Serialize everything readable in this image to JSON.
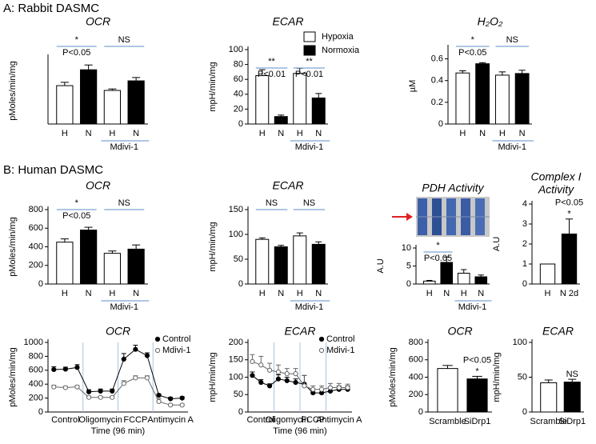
{
  "panels": [
    "A: Rabbit DASMC",
    "B: Human DASMC"
  ],
  "chart_data": [
    {
      "type": "bar",
      "title": "OCR",
      "ylabel": "pMoles/min/mg",
      "categories": [
        "H",
        "N",
        "H",
        "N"
      ],
      "values": [
        520,
        735,
        455,
        585
      ],
      "errors": [
        45,
        65,
        20,
        45
      ],
      "colors": [
        "#ffffff",
        "#000000",
        "#ffffff",
        "#000000"
      ],
      "ylim": [
        0,
        900
      ],
      "pair_labels": [
        [
          "*",
          "P<0.05"
        ],
        [
          "NS"
        ]
      ],
      "group_label": "Mdivi-1"
    },
    {
      "type": "bar",
      "title": "ECAR",
      "ylabel": "mpH/min/mg",
      "categories": [
        "H",
        "N",
        "H",
        "N"
      ],
      "values": [
        65,
        10,
        68,
        35
      ],
      "errors": [
        8,
        2,
        7,
        6
      ],
      "colors": [
        "#ffffff",
        "#000000",
        "#ffffff",
        "#000000"
      ],
      "ylim": [
        0,
        100
      ],
      "yticks": [
        0,
        20,
        40,
        60,
        80,
        100
      ],
      "pair_labels": [
        [
          "**",
          "P<0.01"
        ],
        [
          "**",
          "P<0.01"
        ]
      ],
      "group_label": "Mdivi-1",
      "legend": [
        {
          "name": "Hypoxia",
          "color": "#ffffff"
        },
        {
          "name": "Normoxia",
          "color": "#000000"
        }
      ]
    },
    {
      "type": "bar",
      "title": "H₂O₂",
      "ylabel": "µM",
      "categories": [
        "H",
        "N",
        "H",
        "N"
      ],
      "values": [
        0.47,
        0.555,
        0.45,
        0.465
      ],
      "errors": [
        0.02,
        0.01,
        0.03,
        0.03
      ],
      "colors": [
        "#ffffff",
        "#000000",
        "#ffffff",
        "#000000"
      ],
      "ylim": [
        0,
        0.7
      ],
      "yticks": [
        0,
        0.2,
        0.4,
        0.6
      ],
      "pair_labels": [
        [
          "*",
          "P<0.05"
        ],
        [
          "NS"
        ]
      ],
      "group_label": "Mdivi-1"
    },
    {
      "type": "bar",
      "title": "OCR",
      "ylabel": "pMoles/min/mg",
      "categories": [
        "H",
        "N",
        "H",
        "N"
      ],
      "values": [
        450,
        580,
        330,
        375
      ],
      "errors": [
        35,
        30,
        25,
        45
      ],
      "colors": [
        "#ffffff",
        "#000000",
        "#ffffff",
        "#000000"
      ],
      "ylim": [
        0,
        800
      ],
      "yticks": [
        0,
        200,
        400,
        600,
        800
      ],
      "pair_labels": [
        [
          "*",
          "P<0.05"
        ],
        [
          "NS"
        ]
      ],
      "group_label": "Mdivi-1"
    },
    {
      "type": "bar",
      "title": "ECAR",
      "ylabel": "mpH/min/mg",
      "categories": [
        "H",
        "N",
        "H",
        "N"
      ],
      "values": [
        90,
        75,
        97,
        80
      ],
      "errors": [
        3,
        3,
        6,
        5
      ],
      "colors": [
        "#ffffff",
        "#000000",
        "#ffffff",
        "#000000"
      ],
      "ylim": [
        0,
        150
      ],
      "yticks": [
        0,
        50,
        100,
        150
      ],
      "pair_labels": [
        [
          "NS"
        ],
        [
          "NS"
        ]
      ],
      "group_label": "Mdivi-1"
    },
    {
      "type": "bar",
      "title": "PDH Activity",
      "ylabel": "A.U",
      "categories": [
        "H",
        "N",
        "H",
        "N"
      ],
      "values": [
        0.8,
        6,
        3,
        2
      ],
      "errors": [
        0.2,
        1.5,
        1,
        0.5
      ],
      "colors": [
        "#ffffff",
        "#000000",
        "#ffffff",
        "#000000"
      ],
      "ylim": [
        0,
        10
      ],
      "yticks": [
        0,
        5,
        10
      ],
      "pair_labels": [
        [
          "*",
          "P<0.05"
        ]
      ],
      "group_label": "Mdivi-1"
    },
    {
      "type": "bar",
      "title": [
        "Complex I",
        "Activity"
      ],
      "ylabel": "A.U",
      "categories": [
        "H",
        "N 2d"
      ],
      "values": [
        1,
        2.5
      ],
      "errors": [
        0,
        0.75
      ],
      "colors": [
        "#ffffff",
        "#000000"
      ],
      "ylim": [
        0,
        4
      ],
      "yticks": [
        0,
        1,
        2,
        3,
        4
      ],
      "pair_labels": [
        [
          "P<0.05",
          "*"
        ]
      ]
    },
    {
      "type": "line",
      "title": "OCR",
      "ylabel": "pMoles/min/mg",
      "xlabel": "Time (96 min)",
      "categories": [
        null,
        null,
        null,
        null,
        null,
        null,
        null,
        null,
        null,
        null,
        null,
        null
      ],
      "phases": [
        "Control",
        "Oligomycin",
        "FCCP",
        "Antimycin A"
      ],
      "ylim": [
        0,
        1000
      ],
      "yticks": [
        0,
        200,
        400,
        600,
        800,
        1000
      ],
      "series": [
        {
          "name": "Control",
          "color": "#000000",
          "marker_fill": "#000000",
          "values": [
            610,
            615,
            640,
            290,
            300,
            300,
            760,
            900,
            810,
            240,
            190,
            200
          ],
          "errors": [
            40,
            30,
            40,
            30,
            30,
            30,
            80,
            60,
            40,
            20,
            20,
            20
          ]
        },
        {
          "name": "Mdivi-1",
          "color": "#666666",
          "marker_fill": "#ffffff",
          "values": [
            360,
            350,
            360,
            210,
            210,
            210,
            410,
            490,
            490,
            150,
            100,
            100
          ],
          "errors": [
            25,
            20,
            20,
            20,
            15,
            15,
            40,
            30,
            30,
            40,
            15,
            15
          ]
        }
      ]
    },
    {
      "type": "line",
      "title": "ECAR",
      "ylabel": "mpH/min/mg",
      "xlabel": "Time (96 min)",
      "categories": [
        null,
        null,
        null,
        null,
        null,
        null,
        null,
        null,
        null,
        null,
        null,
        null
      ],
      "phases": [
        "Control",
        "Oligomycin",
        "FCCP",
        "Antimycin A"
      ],
      "ylim": [
        0,
        200
      ],
      "yticks": [
        0,
        50,
        100,
        150,
        200
      ],
      "series": [
        {
          "name": "Control",
          "color": "#000000",
          "marker_fill": "#000000",
          "values": [
            105,
            85,
            75,
            95,
            90,
            85,
            80,
            55,
            55,
            60,
            65,
            65
          ],
          "errors": [
            10,
            8,
            6,
            12,
            10,
            10,
            25,
            10,
            10,
            10,
            10,
            10
          ]
        },
        {
          "name": "Mdivi-1",
          "color": "#666666",
          "marker_fill": "#ffffff",
          "values": [
            145,
            135,
            120,
            115,
            110,
            110,
            75,
            65,
            65,
            70,
            70,
            70
          ],
          "errors": [
            20,
            25,
            20,
            20,
            15,
            15,
            30,
            10,
            10,
            12,
            12,
            10
          ]
        }
      ]
    },
    {
      "type": "bar",
      "title": "OCR",
      "ylabel": "pMoles/min/mg",
      "categories": [
        "Scramble",
        "SiDrp1"
      ],
      "values": [
        500,
        380
      ],
      "errors": [
        35,
        30
      ],
      "colors": [
        "#ffffff",
        "#000000"
      ],
      "ylim": [
        0,
        800
      ],
      "yticks": [
        0,
        200,
        400,
        600,
        800
      ],
      "pair_labels": [
        [
          "P<0.05",
          "*"
        ]
      ]
    },
    {
      "type": "bar",
      "title": "ECAR",
      "ylabel": "mpH/min/mg",
      "categories": [
        "Scramble",
        "SiDrp1"
      ],
      "values": [
        42,
        43
      ],
      "errors": [
        4,
        4
      ],
      "colors": [
        "#ffffff",
        "#000000"
      ],
      "ylim": [
        0,
        100
      ],
      "yticks": [
        0,
        50,
        100
      ],
      "pair_labels": [
        [
          "NS"
        ]
      ]
    }
  ]
}
